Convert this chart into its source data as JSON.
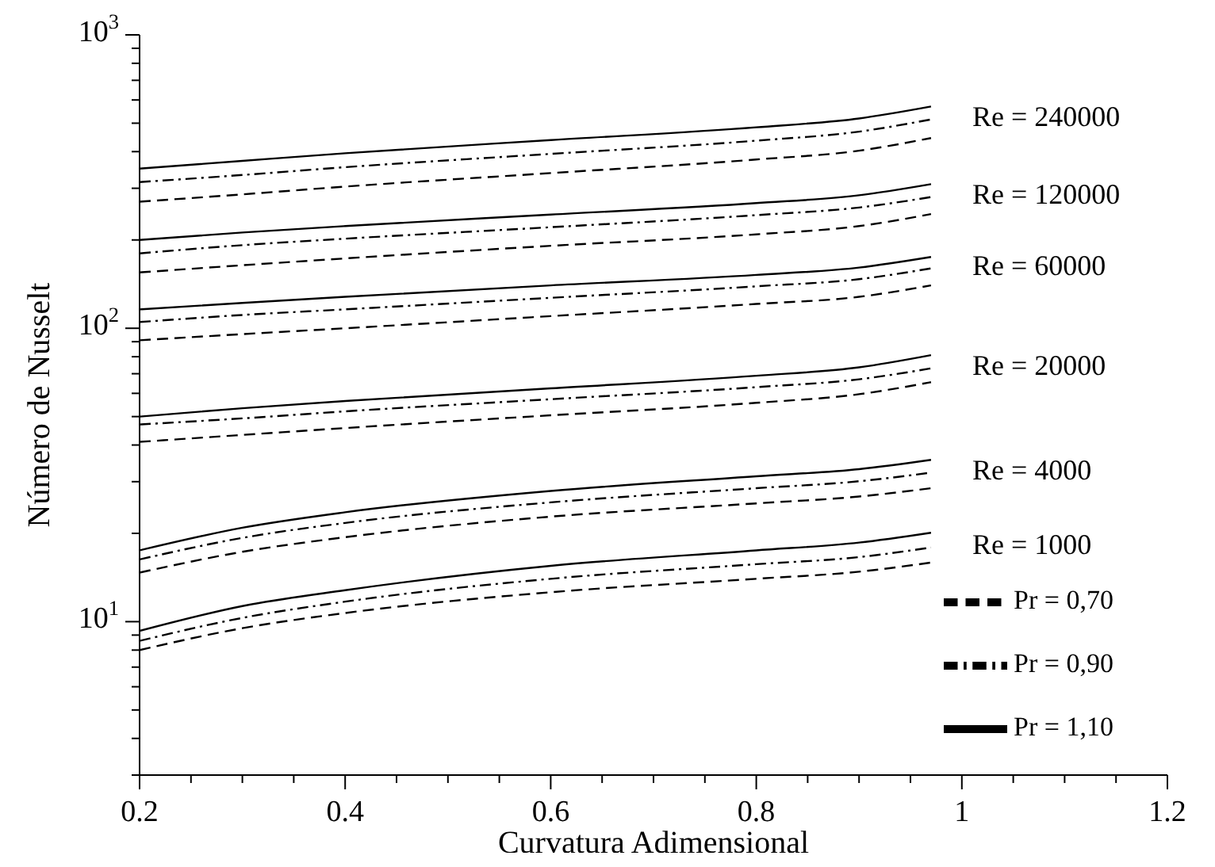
{
  "chart_data": {
    "type": "line",
    "xlabel": "Curvatura Adimensional",
    "ylabel": "Número de Nusselt",
    "log": "y",
    "grid": false,
    "legend": "bottom right",
    "marker": "none",
    "xlim": [
      0.2,
      1.2
    ],
    "ylim": [
      3,
      1000
    ],
    "xticks": [
      0.2,
      {
        "value": 0.25,
        "label": null
      },
      {
        "value": 0.3,
        "label": null
      },
      {
        "value": 0.35,
        "label": null
      },
      0.4,
      {
        "value": 0.45,
        "label": null
      },
      {
        "value": 0.5,
        "label": null
      },
      {
        "value": 0.55,
        "label": null
      },
      0.6,
      {
        "value": 0.65,
        "label": null
      },
      {
        "value": 0.7,
        "label": null
      },
      {
        "value": 0.75,
        "label": null
      },
      0.8,
      {
        "value": 0.85,
        "label": null
      },
      {
        "value": 0.9,
        "label": null
      },
      {
        "value": 0.95,
        "label": null
      },
      1,
      {
        "value": 1.05,
        "label": null
      },
      {
        "value": 1.1,
        "label": null
      },
      {
        "value": 1.15,
        "label": null
      },
      1.2
    ],
    "yticks": [
      {
        "value": 3,
        "label": null
      },
      {
        "value": 4,
        "label": null
      },
      {
        "value": 5,
        "label": null
      },
      {
        "value": 6,
        "label": null
      },
      {
        "value": 7,
        "label": null
      },
      {
        "value": 8,
        "label": null
      },
      {
        "value": 9,
        "label": null
      },
      {
        "value": 10,
        "label": "10$^{1}$"
      },
      {
        "value": 20,
        "label": null
      },
      {
        "value": 30,
        "label": null
      },
      {
        "value": 40,
        "label": null
      },
      {
        "value": 50,
        "label": null
      },
      {
        "value": 60,
        "label": null
      },
      {
        "value": 70,
        "label": null
      },
      {
        "value": 80,
        "label": null
      },
      {
        "value": 90,
        "label": null
      },
      {
        "value": 100,
        "label": "10$^{2}$"
      },
      {
        "value": 200,
        "label": null
      },
      {
        "value": 300,
        "label": null
      },
      {
        "value": 400,
        "label": null
      },
      {
        "value": 500,
        "label": null
      },
      {
        "value": 600,
        "label": null
      },
      {
        "value": 700,
        "label": null
      },
      {
        "value": 800,
        "label": null
      },
      {
        "value": 900,
        "label": null
      },
      {
        "value": 1000,
        "label": "10$^{3}$"
      }
    ],
    "series": [
      {
        "name": "Pr = 0,70",
        "color": "#000000",
        "line_style": "dashed",
        "x": [
          0.2,
          0.3,
          0.4,
          0.6,
          0.8,
          0.9,
          0.97
        ],
        "values": [
          270,
          286,
          304,
          338,
          376,
          403,
          445
        ]
      },
      {
        "name": "Pr = 0,90",
        "color": "#000000",
        "line_style": "dashdot",
        "x": [
          0.2,
          0.3,
          0.4,
          0.6,
          0.8,
          0.9,
          0.97
        ],
        "values": [
          315,
          333,
          354,
          393,
          436,
          468,
          515
        ]
      },
      {
        "name": "Pr = 1,10",
        "color": "#000000",
        "line_style": "solid",
        "x": [
          0.2,
          0.3,
          0.4,
          0.6,
          0.8,
          0.9,
          0.97
        ],
        "values": [
          350,
          372,
          395,
          438,
          484,
          519,
          570
        ]
      },
      {
        "color": "#000000",
        "line_style": "dashed",
        "x": [
          0.2,
          0.3,
          0.4,
          0.6,
          0.8,
          0.9,
          0.97
        ],
        "values": [
          155,
          164,
          173,
          191,
          209,
          223,
          245
        ]
      },
      {
        "color": "#000000",
        "line_style": "dashdot",
        "x": [
          0.2,
          0.3,
          0.4,
          0.6,
          0.8,
          0.9,
          0.97
        ],
        "values": [
          180,
          192,
          202,
          221,
          243,
          258,
          280
        ]
      },
      {
        "color": "#000000",
        "line_style": "solid",
        "x": [
          0.2,
          0.3,
          0.4,
          0.6,
          0.8,
          0.9,
          0.97
        ],
        "values": [
          200,
          212,
          223,
          244,
          267,
          284,
          310
        ]
      },
      {
        "color": "#000000",
        "line_style": "dashed",
        "x": [
          0.2,
          0.3,
          0.4,
          0.6,
          0.8,
          0.9,
          0.97
        ],
        "values": [
          91,
          95.5,
          100,
          110,
          121,
          128,
          140
        ]
      },
      {
        "color": "#000000",
        "line_style": "dashdot",
        "x": [
          0.2,
          0.3,
          0.4,
          0.6,
          0.8,
          0.9,
          0.97
        ],
        "values": [
          105,
          111,
          116,
          127,
          139,
          147,
          160
        ]
      },
      {
        "color": "#000000",
        "line_style": "solid",
        "x": [
          0.2,
          0.3,
          0.4,
          0.6,
          0.8,
          0.9,
          0.97
        ],
        "values": [
          116,
          122,
          128,
          140,
          152,
          161,
          175
        ]
      },
      {
        "color": "#000000",
        "line_style": "dashed",
        "x": [
          0.2,
          0.3,
          0.4,
          0.6,
          0.8,
          0.9,
          0.97
        ],
        "values": [
          41,
          43.3,
          45.7,
          50.5,
          55.7,
          59.6,
          65.5
        ]
      },
      {
        "color": "#000000",
        "line_style": "dashdot",
        "x": [
          0.2,
          0.3,
          0.4,
          0.6,
          0.8,
          0.9,
          0.97
        ],
        "values": [
          47,
          49.3,
          52.1,
          57.3,
          63,
          67,
          73
        ]
      },
      {
        "color": "#000000",
        "line_style": "solid",
        "x": [
          0.2,
          0.3,
          0.4,
          0.6,
          0.8,
          0.9,
          0.97
        ],
        "values": [
          50,
          53.4,
          56.5,
          62.4,
          68.9,
          73.6,
          81
        ]
      },
      {
        "color": "#000000",
        "line_style": "dashed",
        "x": [
          0.2,
          0.3,
          0.4,
          0.6,
          0.8,
          0.9,
          0.97
        ],
        "values": [
          14.7,
          17.3,
          19.4,
          22.8,
          25.3,
          26.7,
          28.5
        ]
      },
      {
        "color": "#000000",
        "line_style": "dashdot",
        "x": [
          0.2,
          0.3,
          0.4,
          0.6,
          0.8,
          0.9,
          0.97
        ],
        "values": [
          16.3,
          19.3,
          21.7,
          25.5,
          28.5,
          30.1,
          32.2
        ]
      },
      {
        "color": "#000000",
        "line_style": "solid",
        "x": [
          0.2,
          0.3,
          0.4,
          0.6,
          0.8,
          0.9,
          0.97
        ],
        "values": [
          17.5,
          20.9,
          23.6,
          27.9,
          31.3,
          33.1,
          35.6
        ]
      },
      {
        "color": "#000000",
        "line_style": "dashed",
        "x": [
          0.2,
          0.3,
          0.4,
          0.6,
          0.8,
          0.9,
          0.97
        ],
        "values": [
          8.0,
          9.5,
          10.7,
          12.6,
          14.0,
          14.8,
          15.9
        ]
      },
      {
        "color": "#000000",
        "line_style": "dashdot",
        "x": [
          0.2,
          0.3,
          0.4,
          0.6,
          0.8,
          0.9,
          0.97
        ],
        "values": [
          8.6,
          10.3,
          11.7,
          14.0,
          15.7,
          16.6,
          17.9
        ]
      },
      {
        "color": "#000000",
        "line_style": "solid",
        "x": [
          0.2,
          0.3,
          0.4,
          0.6,
          0.8,
          0.9,
          0.97
        ],
        "values": [
          9.3,
          11.3,
          12.8,
          15.5,
          17.5,
          18.6,
          20.1
        ]
      }
    ],
    "annotations": [
      "Re = 240000",
      "Re = 120000",
      "Re = 60000",
      "Re = 20000",
      "Re = 4000",
      "Re = 1000"
    ]
  }
}
